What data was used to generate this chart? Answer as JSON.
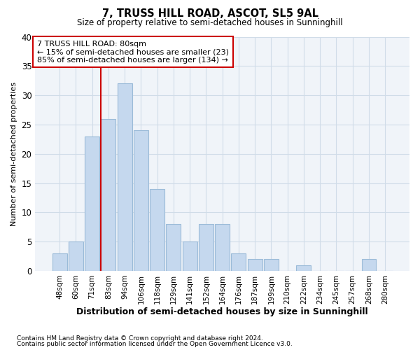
{
  "title": "7, TRUSS HILL ROAD, ASCOT, SL5 9AL",
  "subtitle": "Size of property relative to semi-detached houses in Sunninghill",
  "xlabel": "Distribution of semi-detached houses by size in Sunninghill",
  "ylabel": "Number of semi-detached properties",
  "bar_labels": [
    "48sqm",
    "60sqm",
    "71sqm",
    "83sqm",
    "94sqm",
    "106sqm",
    "118sqm",
    "129sqm",
    "141sqm",
    "152sqm",
    "164sqm",
    "176sqm",
    "187sqm",
    "199sqm",
    "210sqm",
    "222sqm",
    "234sqm",
    "245sqm",
    "257sqm",
    "268sqm",
    "280sqm"
  ],
  "bar_heights": [
    3,
    5,
    23,
    26,
    32,
    24,
    14,
    8,
    5,
    8,
    8,
    3,
    2,
    2,
    0,
    1,
    0,
    0,
    0,
    2,
    0
  ],
  "bar_color": "#c5d8ee",
  "bar_edgecolor": "#9bbbd8",
  "vline_index": 3,
  "vline_color": "#cc0000",
  "annotation_title": "7 TRUSS HILL ROAD: 80sqm",
  "annotation_line1": "← 15% of semi-detached houses are smaller (23)",
  "annotation_line2": "85% of semi-detached houses are larger (134) →",
  "background_color": "#ffffff",
  "plot_background": "#f0f4f9",
  "grid_color": "#d0dce8",
  "ylim": [
    0,
    40
  ],
  "yticks": [
    0,
    5,
    10,
    15,
    20,
    25,
    30,
    35,
    40
  ],
  "footer1": "Contains HM Land Registry data © Crown copyright and database right 2024.",
  "footer2": "Contains public sector information licensed under the Open Government Licence v3.0."
}
